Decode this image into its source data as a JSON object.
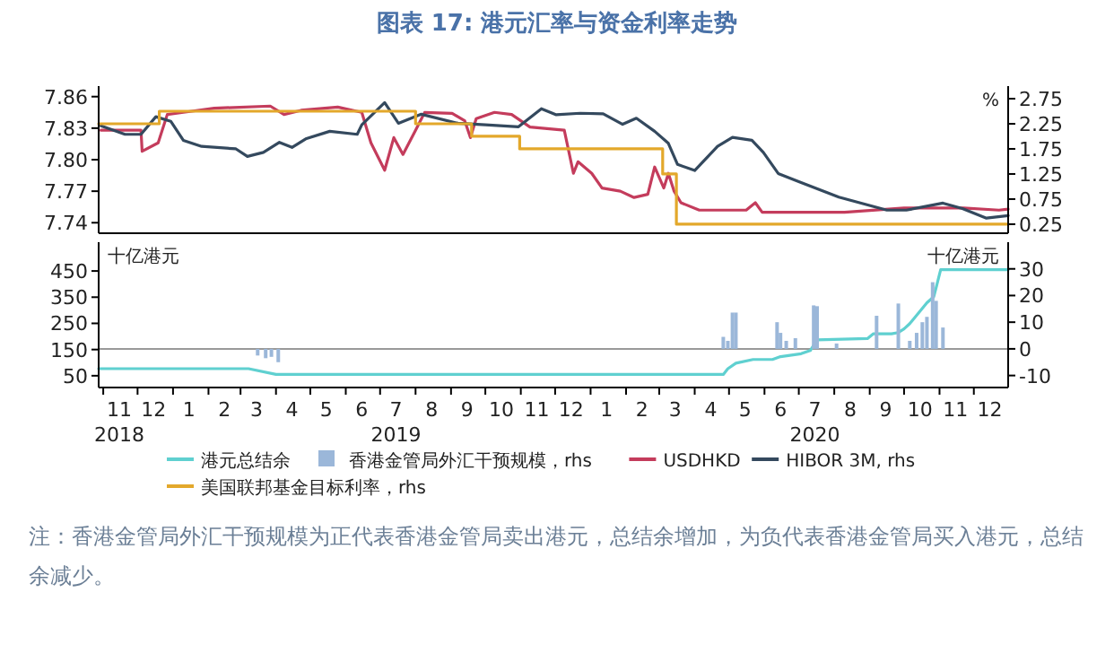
{
  "chart_data": [
    {
      "type": "line",
      "title": "图表 17: 港元汇率与资金利率走势",
      "y2label": "%",
      "xlim": [
        "2018-10-28",
        "2020-12-31"
      ],
      "ylim": [
        7.73,
        7.87
      ],
      "yticks": [
        7.74,
        7.77,
        {
          "value": 7.8,
          "label": "7.80"
        },
        7.83,
        7.86
      ],
      "y2lim": [
        0.07,
        3.0
      ],
      "y2ticks": [
        0.25,
        0.75,
        1.25,
        1.75,
        2.25,
        2.75
      ],
      "tick_labels": "y",
      "legend": "bottom",
      "series": [
        {
          "name": "USDHKD",
          "color": "#c43c5c",
          "x": [
            "2018-10-30",
            "2018-12-04",
            "2018-12-05",
            "2018-12-19",
            "2018-12-27",
            "2019-01-10",
            "2019-02-06",
            "2019-03-27",
            "2019-04-08",
            "2019-04-23",
            "2019-05-25",
            "2019-06-15",
            "2019-06-23",
            "2019-07-05",
            "2019-07-13",
            "2019-07-21",
            "2019-08-01",
            "2019-08-09",
            "2019-09-02",
            "2019-09-13",
            "2019-09-18",
            "2019-09-23",
            "2019-10-09",
            "2019-10-24",
            "2019-11-09",
            "2019-12-09",
            "2019-12-17",
            "2019-12-21",
            "2020-01-02",
            "2020-01-11",
            "2020-01-27",
            "2020-02-08",
            "2020-02-20",
            "2020-02-26",
            "2020-03-05",
            "2020-03-09",
            "2020-03-14",
            "2020-03-20",
            "2020-04-05",
            "2020-05-16",
            "2020-05-24",
            "2020-05-30",
            "2020-08-10",
            "2020-10-01",
            "2020-11-22",
            "2020-12-23",
            "2020-12-31"
          ],
          "values": [
            7.828,
            7.828,
            7.808,
            7.816,
            7.843,
            7.845,
            7.849,
            7.851,
            7.843,
            7.847,
            7.85,
            7.845,
            7.816,
            7.79,
            7.821,
            7.805,
            7.828,
            7.845,
            7.844,
            7.837,
            7.821,
            7.839,
            7.845,
            7.843,
            7.831,
            7.828,
            7.787,
            7.798,
            7.787,
            7.773,
            7.77,
            7.764,
            7.767,
            7.793,
            7.773,
            7.787,
            7.77,
            7.759,
            7.752,
            7.752,
            7.759,
            7.75,
            7.75,
            7.754,
            7.754,
            7.752,
            7.753
          ]
        },
        {
          "name": "HIBOR 3M, rhs",
          "color": "#34495e",
          "axis": "y2",
          "x": [
            "2018-10-30",
            "2018-11-20",
            "2018-12-04",
            "2018-12-17",
            "2018-12-30",
            "2019-01-10",
            "2019-01-26",
            "2019-02-25",
            "2019-03-07",
            "2019-03-21",
            "2019-04-04",
            "2019-04-15",
            "2019-04-27",
            "2019-05-18",
            "2019-06-11",
            "2019-06-15",
            "2019-07-05",
            "2019-07-17",
            "2019-08-06",
            "2019-09-07",
            "2019-10-01",
            "2019-10-30",
            "2019-11-19",
            "2019-12-02",
            "2019-12-23",
            "2020-01-12",
            "2020-01-29",
            "2020-02-10",
            "2020-02-26",
            "2020-03-09",
            "2020-03-17",
            "2020-04-01",
            "2020-04-21",
            "2020-05-04",
            "2020-05-21",
            "2020-05-31",
            "2020-06-13",
            "2020-07-03",
            "2020-08-05",
            "2020-09-16",
            "2020-10-03",
            "2020-11-04",
            "2020-11-21",
            "2020-12-12",
            "2020-12-31"
          ],
          "values": [
            2.21,
            2.04,
            2.04,
            2.39,
            2.3,
            1.92,
            1.8,
            1.75,
            1.6,
            1.68,
            1.88,
            1.78,
            1.95,
            2.1,
            2.04,
            2.23,
            2.67,
            2.26,
            2.44,
            2.26,
            2.23,
            2.19,
            2.55,
            2.43,
            2.46,
            2.45,
            2.24,
            2.36,
            2.1,
            1.86,
            1.44,
            1.32,
            1.8,
            1.98,
            1.92,
            1.68,
            1.26,
            1.08,
            0.79,
            0.53,
            0.53,
            0.67,
            0.56,
            0.37,
            0.42
          ]
        },
        {
          "name": "美国联邦基金目标利率，rhs",
          "color": "#e3a82b",
          "axis": "y2",
          "type": "step",
          "x": [
            "2018-10-28",
            "2018-12-20",
            "2019-08-01",
            "2019-09-19",
            "2019-10-31",
            "2020-03-04",
            "2020-03-16",
            "2020-12-31"
          ],
          "values": [
            2.25,
            2.5,
            2.25,
            2.0,
            1.75,
            1.25,
            0.25,
            0.25
          ]
        }
      ]
    },
    {
      "type": "line",
      "ylabel": "十亿港元",
      "y2label": "十亿港元",
      "xlim": [
        "2018-10-28",
        "2020-12-31"
      ],
      "ylim": [
        5,
        560
      ],
      "yticks": [
        50,
        150,
        250,
        350,
        450
      ],
      "y2lim": [
        -14.5,
        40
      ],
      "y2ticks": [
        -10,
        0,
        10,
        20,
        30
      ],
      "legend": "bottom",
      "xticks": [
        {
          "value": "2018-11-15",
          "label": "11\n2018"
        },
        {
          "value": "2018-12-15",
          "label": "12"
        },
        {
          "value": "2019-01-15",
          "label": "1"
        },
        {
          "value": "2019-02-15",
          "label": "2"
        },
        {
          "value": "2019-03-15",
          "label": "3"
        },
        {
          "value": "2019-04-15",
          "label": "4"
        },
        {
          "value": "2019-05-15",
          "label": "5"
        },
        {
          "value": "2019-06-15",
          "label": "6"
        },
        {
          "value": "2019-07-15",
          "label": "7\n2019"
        },
        {
          "value": "2019-08-15",
          "label": "8"
        },
        {
          "value": "2019-09-15",
          "label": "9"
        },
        {
          "value": "2019-10-15",
          "label": "10"
        },
        {
          "value": "2019-11-15",
          "label": "11"
        },
        {
          "value": "2019-12-15",
          "label": "12"
        },
        {
          "value": "2020-01-15",
          "label": "1"
        },
        {
          "value": "2020-02-15",
          "label": "2"
        },
        {
          "value": "2020-03-15",
          "label": "3"
        },
        {
          "value": "2020-04-15",
          "label": "4"
        },
        {
          "value": "2020-05-15",
          "label": "5"
        },
        {
          "value": "2020-06-15",
          "label": "6"
        },
        {
          "value": "2020-07-15",
          "label": "7\n2020"
        },
        {
          "value": "2020-08-15",
          "label": "8"
        },
        {
          "value": "2020-09-15",
          "label": "9"
        },
        {
          "value": "2020-10-15",
          "label": "10"
        },
        {
          "value": "2020-11-15",
          "label": "11"
        },
        {
          "value": "2020-12-15",
          "label": "12"
        },
        {
          "value": "2018-11-01",
          "label": null
        },
        {
          "value": "2018-12-01",
          "label": null
        },
        {
          "value": "2019-01-01",
          "label": null
        },
        {
          "value": "2019-02-01",
          "label": null
        },
        {
          "value": "2019-03-01",
          "label": null
        },
        {
          "value": "2019-04-01",
          "label": null
        },
        {
          "value": "2019-05-01",
          "label": null
        },
        {
          "value": "2019-06-01",
          "label": null
        },
        {
          "value": "2019-07-01",
          "label": null
        },
        {
          "value": "2019-08-01",
          "label": null
        },
        {
          "value": "2019-09-01",
          "label": null
        },
        {
          "value": "2019-10-01",
          "label": null
        },
        {
          "value": "2019-11-01",
          "label": null
        },
        {
          "value": "2019-12-01",
          "label": null
        },
        {
          "value": "2020-01-01",
          "label": null
        },
        {
          "value": "2020-02-01",
          "label": null
        },
        {
          "value": "2020-03-01",
          "label": null
        },
        {
          "value": "2020-04-01",
          "label": null
        },
        {
          "value": "2020-05-01",
          "label": null
        },
        {
          "value": "2020-06-01",
          "label": null
        },
        {
          "value": "2020-07-01",
          "label": null
        },
        {
          "value": "2020-08-01",
          "label": null
        },
        {
          "value": "2020-09-01",
          "label": null
        },
        {
          "value": "2020-10-01",
          "label": null
        },
        {
          "value": "2020-11-01",
          "label": null
        },
        {
          "value": "2020-12-01",
          "label": null
        }
      ],
      "ref_lines": [
        {
          "axis": "y2",
          "value": 0,
          "color": "#999999"
        }
      ],
      "annotations": [
        "注：香港金管局外汇干预规模为正代表香港金管局卖出港元，总结余增加，为负代表香港金管局买入港元，总结余减少。"
      ],
      "series": [
        {
          "name": "港元总结余",
          "color": "#5fd0d0",
          "x": [
            "2018-10-28",
            "2019-03-08",
            "2019-04-01",
            "2020-04-26",
            "2020-04-30",
            "2020-05-07",
            "2020-05-22",
            "2020-06-08",
            "2020-06-15",
            "2020-07-03",
            "2020-07-11",
            "2020-07-17",
            "2020-08-30",
            "2020-09-04",
            "2020-09-20",
            "2020-09-26",
            "2020-10-01",
            "2020-10-06",
            "2020-10-21",
            "2020-10-27",
            "2020-10-29",
            "2020-11-02",
            "2020-12-31"
          ],
          "values": [
            77,
            77,
            55,
            55,
            77,
            98,
            112,
            112,
            123,
            134,
            146,
            187,
            192,
            210,
            210,
            215,
            229,
            249,
            329,
            352,
            386,
            455,
            455
          ]
        },
        {
          "name": "香港金管局外汇干预规模，rhs",
          "color": "#9bb7d9",
          "type": "bar",
          "axis": "y2",
          "x": [
            "2019-03-16",
            "2019-03-23",
            "2019-03-28",
            "2019-04-03",
            "2020-04-26",
            "2020-04-30",
            "2020-05-04",
            "2020-05-07",
            "2020-06-12",
            "2020-06-15",
            "2020-06-20",
            "2020-06-28",
            "2020-07-14",
            "2020-07-17",
            "2020-08-03",
            "2020-09-07",
            "2020-09-26",
            "2020-10-06",
            "2020-10-12",
            "2020-10-17",
            "2020-10-21",
            "2020-10-26",
            "2020-10-29",
            "2020-11-04"
          ],
          "values": [
            -2.5,
            -3.5,
            -3,
            -5,
            4.5,
            3,
            13.6,
            13.6,
            10,
            6,
            3,
            4,
            16.3,
            16,
            2,
            12.4,
            17,
            3,
            6,
            10,
            12,
            25,
            18,
            8
          ]
        }
      ]
    }
  ]
}
